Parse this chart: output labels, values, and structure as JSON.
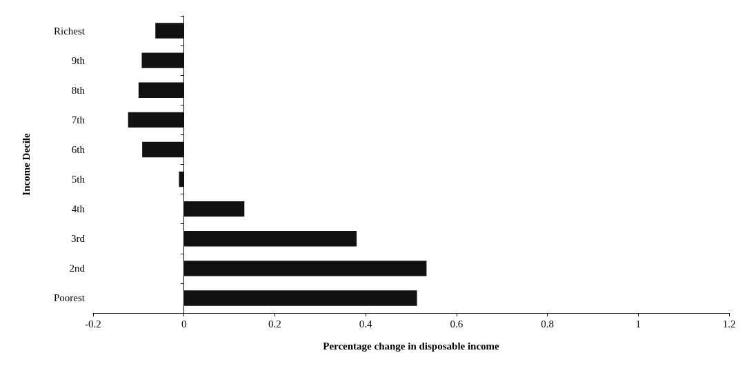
{
  "chart_data": {
    "type": "bar",
    "orientation": "horizontal",
    "xlabel": "Percentage change in disposable income",
    "ylabel": "Income Decile",
    "categories": [
      "Richest",
      "9th",
      "8th",
      "7th",
      "6th",
      "5th",
      "4th",
      "3rd",
      "2nd",
      "Poorest"
    ],
    "values": [
      -0.063,
      -0.093,
      -0.1,
      -0.123,
      -0.092,
      -0.011,
      0.133,
      0.38,
      0.534,
      0.513
    ],
    "color": "#111111",
    "xlim": [
      -0.2,
      1.2
    ],
    "xticks": [
      -0.2,
      0,
      0.2,
      0.4,
      0.6,
      0.8,
      1,
      1.2
    ]
  }
}
